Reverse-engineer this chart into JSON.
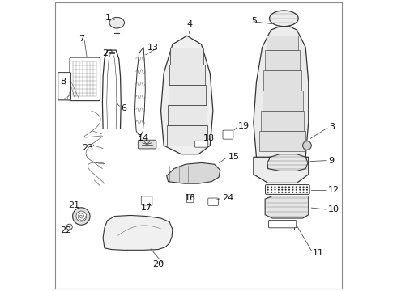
{
  "title": "",
  "background_color": "#ffffff",
  "border_color": "#000000",
  "line_color": "#333333",
  "label_fontsize": 8,
  "dpi": 100
}
